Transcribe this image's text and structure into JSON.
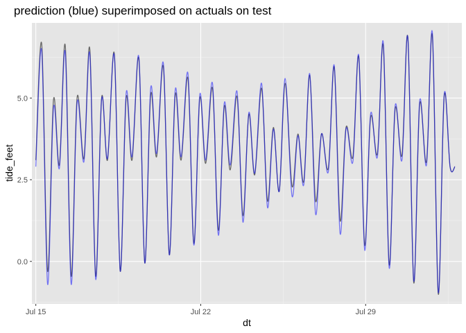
{
  "chart_data": {
    "type": "line",
    "title": "prediction (blue) superimposed on actuals on test",
    "xlabel": "dt",
    "ylabel": "tide_feet",
    "x_ticks": [
      {
        "label": "Jul 15",
        "value": "2017-07-15"
      },
      {
        "label": "Jul 22",
        "value": "2017-07-22"
      },
      {
        "label": "Jul 29",
        "value": "2017-07-29"
      }
    ],
    "y_ticks": [
      {
        "label": "0.0",
        "value": 0.0
      },
      {
        "label": "2.5",
        "value": 2.5
      },
      {
        "label": "5.0",
        "value": 5.0
      }
    ],
    "xlim": [
      "2017-07-14 20:00",
      "2017-08-02 02:00"
    ],
    "ylim": [
      -1.3,
      7.3
    ],
    "grid": true,
    "legend": "none",
    "series": [
      {
        "color": "#000000",
        "opacity": 0.55,
        "x": [
          "2017-07-15 00:00",
          "2017-07-15 06:00",
          "2017-07-15 12:00",
          "2017-07-15 18:00",
          "2017-07-16 00:00",
          "2017-07-16 06:00",
          "2017-07-16 12:00",
          "2017-07-16 18:00",
          "2017-07-17 01:00",
          "2017-07-17 07:00",
          "2017-07-17 13:00",
          "2017-07-17 19:00",
          "2017-07-18 01:00",
          "2017-07-18 08:00",
          "2017-07-18 14:00",
          "2017-07-18 20:00",
          "2017-07-19 02:00",
          "2017-07-19 09:00",
          "2017-07-19 15:00",
          "2017-07-19 21:00",
          "2017-07-20 03:00",
          "2017-07-20 10:00",
          "2017-07-20 16:00",
          "2017-07-20 22:00",
          "2017-07-21 04:00",
          "2017-07-21 11:00",
          "2017-07-21 17:00",
          "2017-07-21 23:00",
          "2017-07-22 05:00",
          "2017-07-22 12:00",
          "2017-07-22 18:00",
          "2017-07-23 00:00",
          "2017-07-23 06:00",
          "2017-07-23 13:00",
          "2017-07-23 19:00",
          "2017-07-24 01:00",
          "2017-07-24 07:00",
          "2017-07-24 14:00",
          "2017-07-24 20:00",
          "2017-07-25 02:00",
          "2017-07-25 08:00",
          "2017-07-25 14:00",
          "2017-07-25 21:00",
          "2017-07-26 03:00",
          "2017-07-26 09:00",
          "2017-07-26 15:00",
          "2017-07-26 21:00",
          "2017-07-27 03:00",
          "2017-07-27 10:00",
          "2017-07-27 16:00",
          "2017-07-27 22:00",
          "2017-07-28 04:00",
          "2017-07-28 11:00",
          "2017-07-28 17:00",
          "2017-07-28 23:00",
          "2017-07-29 05:00",
          "2017-07-29 12:00",
          "2017-07-29 18:00",
          "2017-07-30 00:00",
          "2017-07-30 06:00",
          "2017-07-30 13:00",
          "2017-07-30 19:00",
          "2017-07-31 01:00",
          "2017-07-31 07:00",
          "2017-07-31 14:00",
          "2017-07-31 20:00",
          "2017-08-01 02:00",
          "2017-08-01 08:00",
          "2017-08-01 14:00",
          "2017-08-01 19:00"
        ],
        "y": [
          3.1,
          6.65,
          -0.3,
          4.95,
          2.95,
          6.6,
          -0.45,
          5.0,
          3.15,
          6.5,
          -0.45,
          5.0,
          3.1,
          6.35,
          -0.3,
          5.0,
          3.1,
          6.2,
          -0.05,
          5.1,
          3.2,
          5.95,
          0.2,
          5.1,
          3.1,
          5.6,
          0.55,
          5.0,
          3.0,
          5.3,
          0.95,
          4.75,
          2.8,
          5.05,
          1.4,
          4.5,
          2.65,
          5.3,
          1.85,
          4.1,
          2.15,
          5.45,
          2.3,
          3.9,
          2.45,
          5.7,
          1.85,
          3.9,
          2.85,
          5.95,
          1.25,
          4.1,
          3.2,
          6.25,
          0.5,
          4.4,
          3.3,
          6.6,
          -0.1,
          4.65,
          3.25,
          6.85,
          -0.65,
          4.8,
          3.05,
          6.9,
          -1.0,
          5.05,
          2.9,
          2.9
        ]
      },
      {
        "color": "#0000ff",
        "opacity": 0.5,
        "x": [
          "2017-07-15 00:00",
          "2017-07-15 06:00",
          "2017-07-15 12:00",
          "2017-07-15 18:00",
          "2017-07-16 00:00",
          "2017-07-16 06:00",
          "2017-07-16 12:00",
          "2017-07-16 18:00",
          "2017-07-17 01:00",
          "2017-07-17 07:00",
          "2017-07-17 13:00",
          "2017-07-17 19:00",
          "2017-07-18 01:00",
          "2017-07-18 08:00",
          "2017-07-18 14:00",
          "2017-07-18 20:00",
          "2017-07-19 02:00",
          "2017-07-19 09:00",
          "2017-07-19 15:00",
          "2017-07-19 21:00",
          "2017-07-20 03:00",
          "2017-07-20 10:00",
          "2017-07-20 16:00",
          "2017-07-20 22:00",
          "2017-07-21 04:00",
          "2017-07-21 11:00",
          "2017-07-21 17:00",
          "2017-07-21 23:00",
          "2017-07-22 05:00",
          "2017-07-22 12:00",
          "2017-07-22 18:00",
          "2017-07-23 00:00",
          "2017-07-23 06:00",
          "2017-07-23 13:00",
          "2017-07-23 19:00",
          "2017-07-24 01:00",
          "2017-07-24 07:00",
          "2017-07-24 14:00",
          "2017-07-24 20:00",
          "2017-07-25 02:00",
          "2017-07-25 08:00",
          "2017-07-25 14:00",
          "2017-07-25 21:00",
          "2017-07-26 03:00",
          "2017-07-26 09:00",
          "2017-07-26 15:00",
          "2017-07-26 21:00",
          "2017-07-27 03:00",
          "2017-07-27 10:00",
          "2017-07-27 16:00",
          "2017-07-27 22:00",
          "2017-07-28 04:00",
          "2017-07-28 11:00",
          "2017-07-28 17:00",
          "2017-07-28 23:00",
          "2017-07-29 05:00",
          "2017-07-29 12:00",
          "2017-07-29 18:00",
          "2017-07-30 00:00",
          "2017-07-30 06:00",
          "2017-07-30 13:00",
          "2017-07-30 19:00",
          "2017-07-31 01:00",
          "2017-07-31 07:00",
          "2017-07-31 14:00",
          "2017-07-31 20:00",
          "2017-08-01 02:00",
          "2017-08-01 08:00",
          "2017-08-01 14:00",
          "2017-08-01 19:00"
        ],
        "y": [
          2.9,
          6.45,
          -0.7,
          4.7,
          2.85,
          6.4,
          -0.7,
          4.85,
          3.05,
          6.35,
          -0.55,
          4.95,
          3.15,
          6.3,
          -0.3,
          5.15,
          3.2,
          6.25,
          -0.05,
          5.3,
          3.3,
          6.05,
          0.2,
          5.25,
          3.2,
          5.75,
          0.5,
          5.1,
          3.1,
          5.45,
          0.8,
          4.85,
          2.95,
          5.2,
          1.2,
          4.55,
          2.7,
          5.45,
          1.65,
          4.05,
          2.15,
          5.6,
          2.0,
          3.85,
          2.35,
          5.75,
          1.45,
          3.9,
          2.75,
          6.0,
          0.85,
          4.05,
          3.05,
          6.3,
          0.35,
          4.5,
          3.2,
          6.7,
          -0.2,
          4.75,
          3.1,
          6.85,
          -0.6,
          4.9,
          2.95,
          7.0,
          -0.95,
          5.1,
          2.9,
          2.9
        ]
      }
    ]
  }
}
